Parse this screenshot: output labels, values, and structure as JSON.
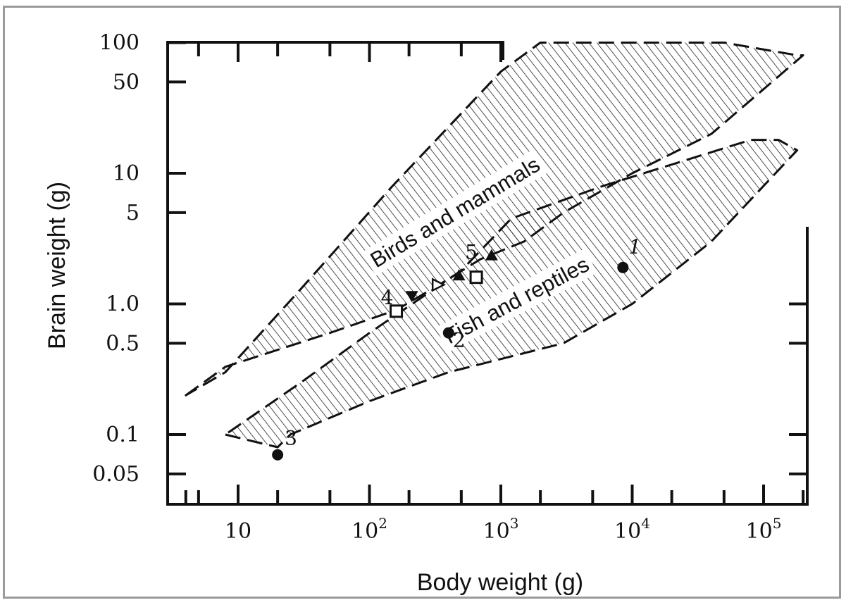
{
  "chart_data": {
    "type": "scatter",
    "title": "",
    "xlabel": "Body weight (g)",
    "ylabel": "Brain weight (g)",
    "x_scale": "log",
    "y_scale": "log",
    "xlim": [
      2.5,
      250000
    ],
    "ylim": [
      0.025,
      100
    ],
    "grid": false,
    "x_ticks": [
      {
        "value": 10,
        "base": "10",
        "exp": ""
      },
      {
        "value": 100,
        "base": "10",
        "exp": "2"
      },
      {
        "value": 1000,
        "base": "10",
        "exp": "3"
      },
      {
        "value": 10000,
        "base": "10",
        "exp": "4"
      },
      {
        "value": 100000,
        "base": "10",
        "exp": "5"
      }
    ],
    "y_ticks": [
      {
        "value": 100,
        "label": "100"
      },
      {
        "value": 50,
        "label": "50"
      },
      {
        "value": 10,
        "label": "10"
      },
      {
        "value": 5,
        "label": "5"
      },
      {
        "value": 1,
        "label": "1.0"
      },
      {
        "value": 0.5,
        "label": "0.5"
      },
      {
        "value": 0.1,
        "label": "0.1"
      },
      {
        "value": 0.05,
        "label": "0.05"
      }
    ],
    "regions": [
      {
        "label": "Birds and mammals",
        "label_at": [
          480,
          4.5
        ],
        "label_angle_deg": -31,
        "outline": [
          [
            4,
            0.2
          ],
          [
            8,
            0.33
          ],
          [
            50,
            0.6
          ],
          [
            160,
            0.9
          ],
          [
            300,
            1.3
          ],
          [
            700,
            2.2
          ],
          [
            1500,
            3.0
          ],
          [
            3000,
            5.0
          ],
          [
            10000,
            10
          ],
          [
            40000,
            20
          ],
          [
            200000,
            80
          ],
          [
            180000,
            80
          ],
          [
            50000,
            100
          ],
          [
            2000,
            100
          ],
          [
            1000,
            60
          ],
          [
            150,
            8
          ],
          [
            30,
            1.3
          ],
          [
            8,
            0.3
          ],
          [
            4,
            0.2
          ]
        ]
      },
      {
        "label": "Fish and reptiles",
        "label_at": [
          1400,
          0.95
        ],
        "label_angle_deg": -28,
        "outline": [
          [
            8,
            0.1
          ],
          [
            20,
            0.08
          ],
          [
            25,
            0.1
          ],
          [
            100,
            0.18
          ],
          [
            400,
            0.3
          ],
          [
            3000,
            0.5
          ],
          [
            10000,
            1.0
          ],
          [
            40000,
            3.0
          ],
          [
            100000,
            8.0
          ],
          [
            180000,
            15
          ],
          [
            130000,
            18
          ],
          [
            80000,
            18
          ],
          [
            6000,
            8.0
          ],
          [
            1200,
            4.5
          ],
          [
            500,
            1.8
          ],
          [
            100,
            0.6
          ],
          [
            30,
            0.25
          ],
          [
            8,
            0.1
          ]
        ]
      }
    ],
    "points": [
      {
        "label": "1",
        "marker": "circle",
        "x": 8500,
        "y": 1.9
      },
      {
        "label": "2",
        "marker": "circle",
        "x": 400,
        "y": 0.6
      },
      {
        "label": "3",
        "marker": "circle",
        "x": 20,
        "y": 0.07
      },
      {
        "label": "4",
        "marker": "square-open",
        "x": 160,
        "y": 0.88
      },
      {
        "label": "",
        "marker": "triangle-down",
        "x": 210,
        "y": 1.15
      },
      {
        "label": "",
        "marker": "triangle-right-open",
        "x": 330,
        "y": 1.4
      },
      {
        "label": "",
        "marker": "triangle-up",
        "x": 480,
        "y": 1.65
      },
      {
        "label": "5",
        "marker": "square-open",
        "x": 650,
        "y": 1.6
      },
      {
        "label": "",
        "marker": "triangle-up",
        "x": 850,
        "y": 2.35
      }
    ]
  }
}
